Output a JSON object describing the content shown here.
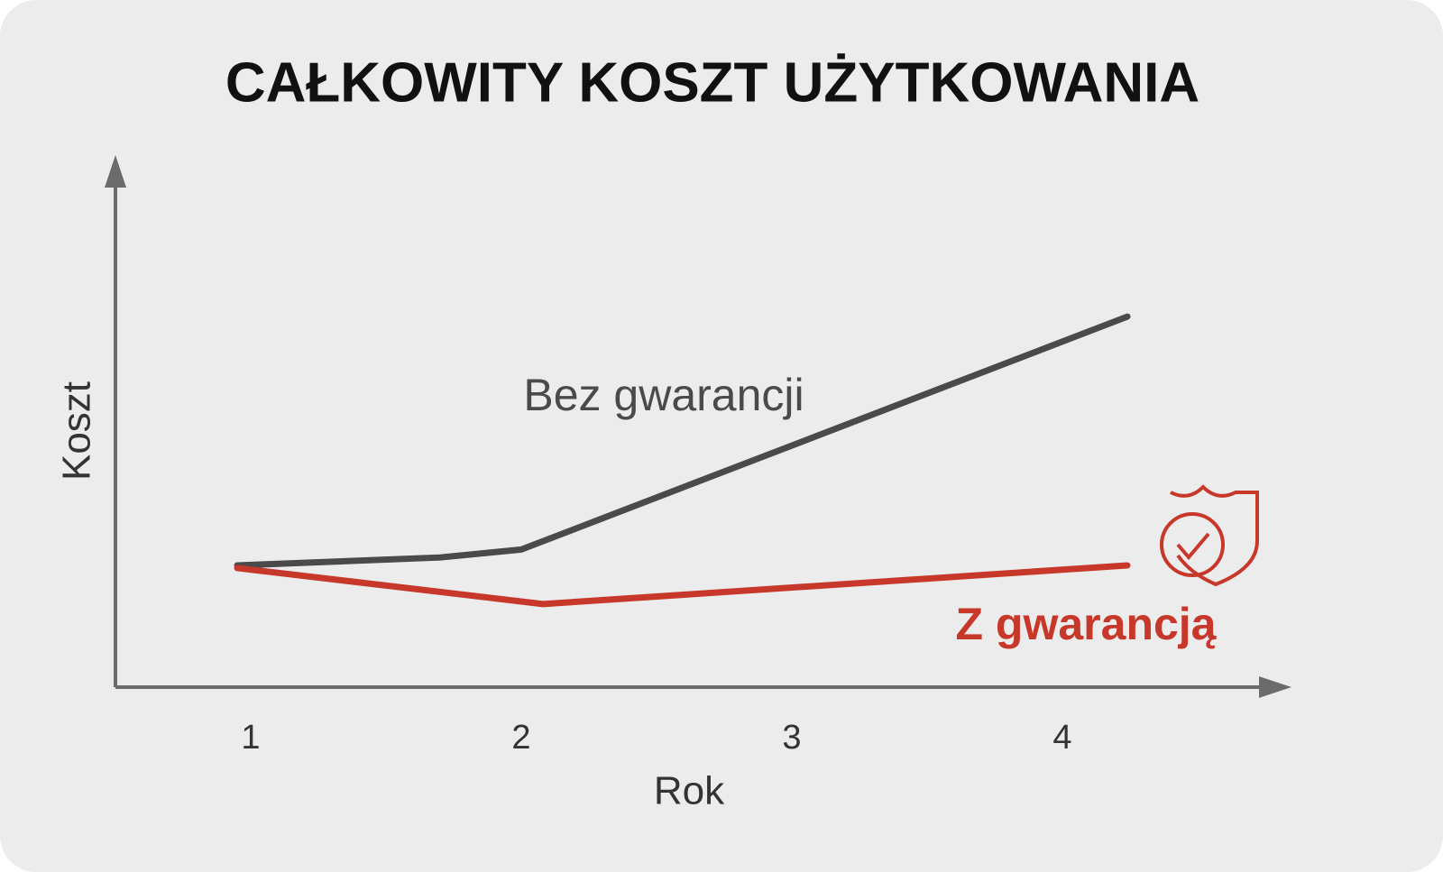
{
  "chart_data": {
    "type": "line",
    "title": "CAŁKOWITY KOSZT UŻYTKOWANIA",
    "x_label": "Rok",
    "y_label": "Koszt",
    "xlim": [
      0.5,
      4.75
    ],
    "xticks": [
      1,
      2,
      3,
      4
    ],
    "ylim": [
      0,
      100
    ],
    "grid": false,
    "series": [
      {
        "name": "Bez gwarancji",
        "color": "#4a4a4a",
        "x": [
          0.95,
          1.7,
          2.0,
          4.24
        ],
        "values": [
          23,
          24.5,
          26,
          70
        ]
      },
      {
        "name": "Z gwarancją",
        "color": "#c8382a",
        "x": [
          0.95,
          2.08,
          4.24
        ],
        "values": [
          22.5,
          15.7,
          23
        ]
      }
    ]
  }
}
